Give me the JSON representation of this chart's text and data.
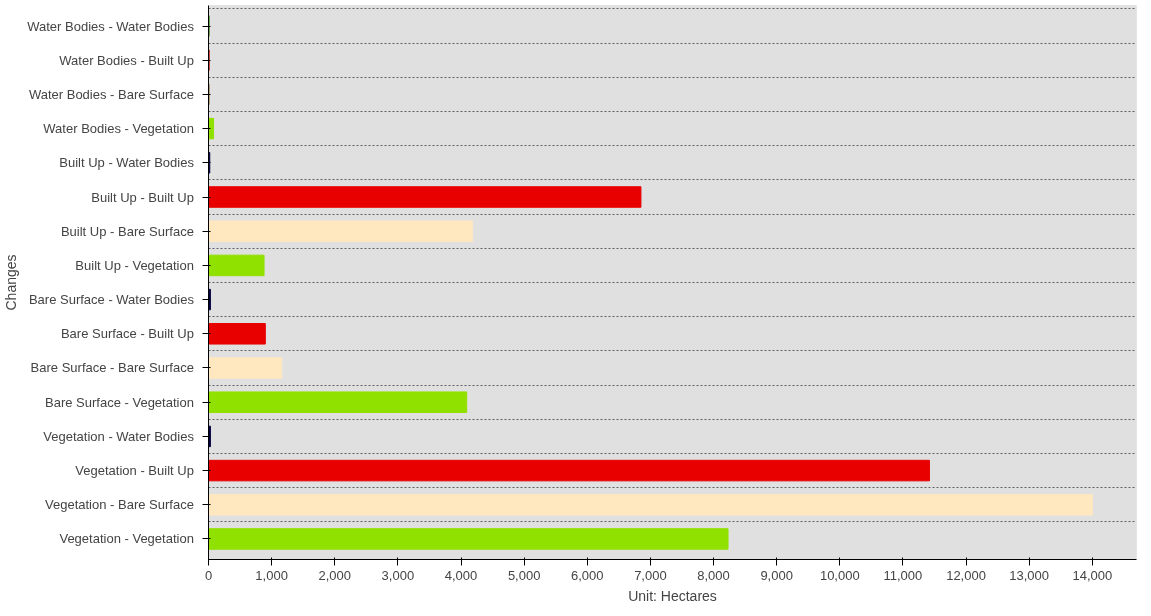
{
  "chart_data": {
    "type": "bar",
    "orientation": "horizontal",
    "xlabel": "Unit: Hectares",
    "ylabel": "Changes",
    "categories": [
      "Water Bodies  - Water Bodies",
      "Water Bodies  - Built Up",
      "Water Bodies  - Bare Surface",
      "Water Bodies  - Vegetation",
      "Built Up  - Water Bodies",
      "Built Up  - Built Up",
      "Built Up  - Bare Surface",
      "Built Up  - Vegetation",
      "Bare Surface  - Water Bodies",
      "Bare Surface  - Built Up",
      "Bare Surface  - Bare Surface",
      "Bare Surface  - Vegetation",
      "Vegetation  - Water Bodies",
      "Vegetation  - Built Up",
      "Vegetation  - Bare Surface",
      "Vegetation  - Vegetation"
    ],
    "values": [
      10,
      10,
      10,
      80,
      20,
      6850,
      4180,
      880,
      30,
      900,
      1160,
      4090,
      30,
      11420,
      14000,
      8230
    ],
    "colors": [
      "#3a8a1a",
      "#c00000",
      "#a08050",
      "#90e000",
      "#000040",
      "#e80000",
      "#ffe8c0",
      "#90e000",
      "#000040",
      "#e80000",
      "#ffe8c0",
      "#90e000",
      "#000040",
      "#e80000",
      "#ffe8c0",
      "#90e000"
    ],
    "xlim": [
      0,
      14700
    ],
    "xticks": [
      {
        "value": 0,
        "label": "0"
      },
      {
        "value": 1000,
        "label": "1,000"
      },
      {
        "value": 2000,
        "label": "2,000"
      },
      {
        "value": 3000,
        "label": "3,000"
      },
      {
        "value": 4000,
        "label": "4,000"
      },
      {
        "value": 5000,
        "label": "5,000"
      },
      {
        "value": 6000,
        "label": "6,000"
      },
      {
        "value": 7000,
        "label": "7,000"
      },
      {
        "value": 8000,
        "label": "8,000"
      },
      {
        "value": 9000,
        "label": "9,000"
      },
      {
        "value": 10000,
        "label": "10,000"
      },
      {
        "value": 11000,
        "label": "11,000"
      },
      {
        "value": 12000,
        "label": "12,000"
      },
      {
        "value": 13000,
        "label": "13,000"
      },
      {
        "value": 14000,
        "label": "14,000"
      }
    ],
    "grid": "y"
  }
}
